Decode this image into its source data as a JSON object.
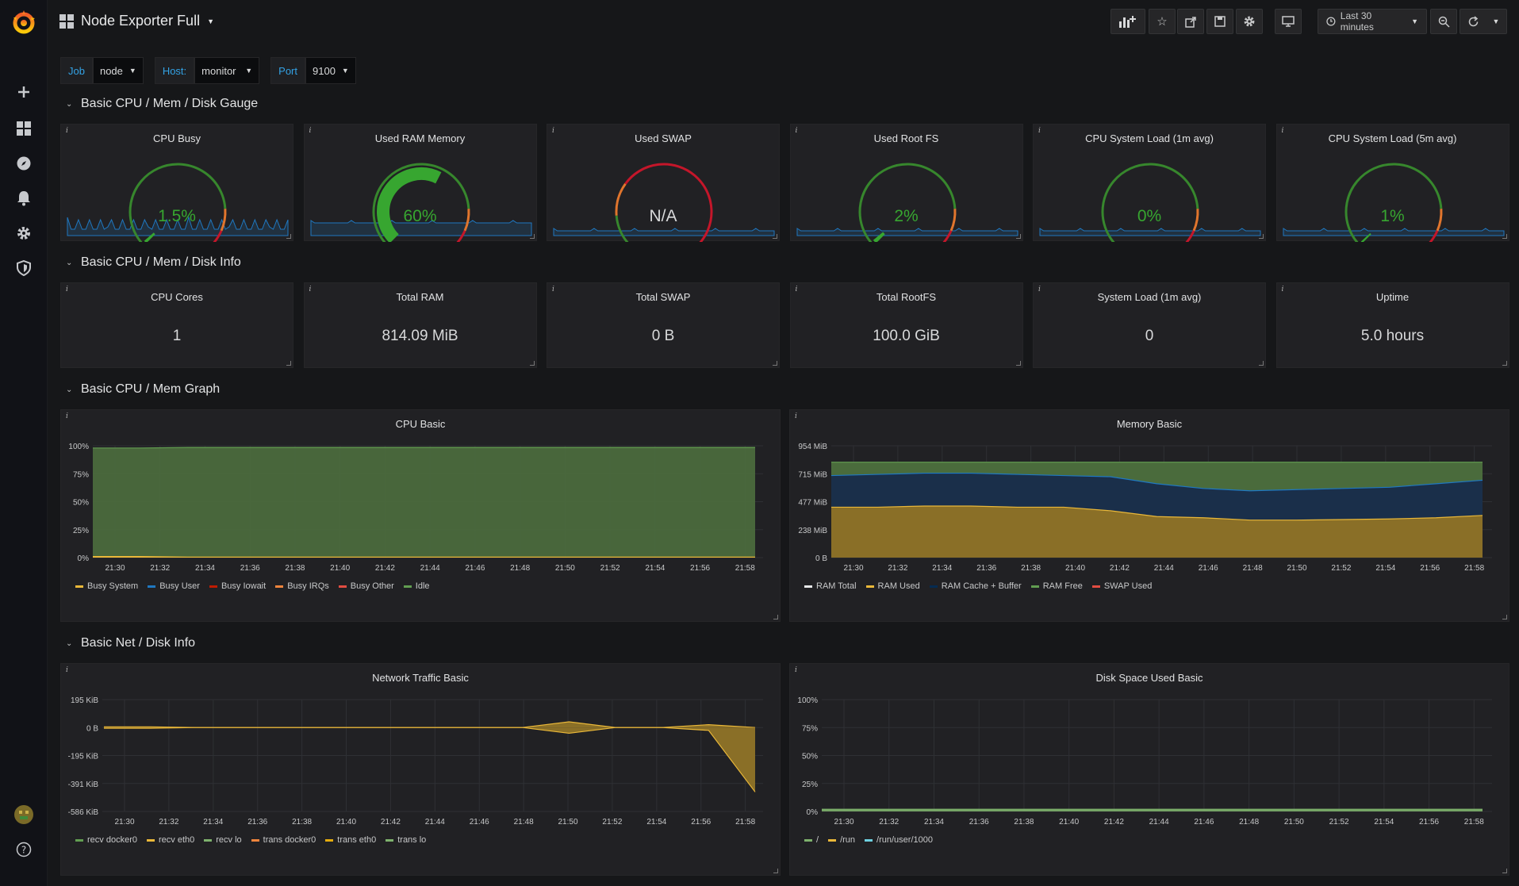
{
  "header": {
    "title": "Node Exporter Full",
    "time_range": "Last 30 minutes"
  },
  "variables": [
    {
      "label": "Job",
      "value": "node"
    },
    {
      "label": "Host:",
      "value": "monitor"
    },
    {
      "label": "Port",
      "value": "9100"
    }
  ],
  "rows": [
    {
      "title": "Basic CPU / Mem / Disk Gauge"
    },
    {
      "title": "Basic CPU / Mem / Disk Info"
    },
    {
      "title": "Basic CPU / Mem Graph"
    },
    {
      "title": "Basic Net / Disk Info"
    }
  ],
  "gauges": [
    {
      "title": "CPU Busy",
      "value": "1.5%",
      "fraction": 0.015,
      "color": "#37a630"
    },
    {
      "title": "Used RAM Memory",
      "value": "60%",
      "fraction": 0.6,
      "color": "#37a630"
    },
    {
      "title": "Used SWAP",
      "value": "N/A",
      "fraction": 0,
      "color": "#d8d9da"
    },
    {
      "title": "Used Root FS",
      "value": "2%",
      "fraction": 0.02,
      "color": "#37a630"
    },
    {
      "title": "CPU System Load (1m avg)",
      "value": "0%",
      "fraction": 0,
      "color": "#37a630"
    },
    {
      "title": "CPU System Load (5m avg)",
      "value": "1%",
      "fraction": 0.01,
      "color": "#37a630"
    }
  ],
  "stats": [
    {
      "title": "CPU Cores",
      "value": "1"
    },
    {
      "title": "Total RAM",
      "value": "814.09 MiB"
    },
    {
      "title": "Total SWAP",
      "value": "0 B"
    },
    {
      "title": "Total RootFS",
      "value": "100.0 GiB"
    },
    {
      "title": "System Load (1m avg)",
      "value": "0"
    },
    {
      "title": "Uptime",
      "value": "5.0 hours"
    }
  ],
  "graphs": {
    "cpu": {
      "title": "CPU Basic",
      "legend": [
        {
          "name": "Busy System",
          "color": "#eab839"
        },
        {
          "name": "Busy User",
          "color": "#1f78c1"
        },
        {
          "name": "Busy Iowait",
          "color": "#bf1b00"
        },
        {
          "name": "Busy IRQs",
          "color": "#ef843c"
        },
        {
          "name": "Busy Other",
          "color": "#e24d42"
        },
        {
          "name": "Idle",
          "color": "#629e51"
        }
      ]
    },
    "memory": {
      "title": "Memory Basic",
      "legend": [
        {
          "name": "RAM Total",
          "color": "#e8e9ea"
        },
        {
          "name": "RAM Used",
          "color": "#eab839"
        },
        {
          "name": "RAM Cache + Buffer",
          "color": "#052b51"
        },
        {
          "name": "RAM Free",
          "color": "#629e51"
        },
        {
          "name": "SWAP Used",
          "color": "#e24d42"
        }
      ]
    },
    "network": {
      "title": "Network Traffic Basic",
      "legend": [
        {
          "name": "recv docker0",
          "color": "#629e51"
        },
        {
          "name": "recv eth0",
          "color": "#eab839"
        },
        {
          "name": "recv lo",
          "color": "#7eb26d"
        },
        {
          "name": "trans docker0",
          "color": "#ef843c"
        },
        {
          "name": "trans eth0",
          "color": "#e5ac0e"
        },
        {
          "name": "trans lo",
          "color": "#7eb26d"
        }
      ]
    },
    "disk": {
      "title": "Disk Space Used Basic",
      "legend": [
        {
          "name": "/",
          "color": "#7eb26d"
        },
        {
          "name": "/run",
          "color": "#eab839"
        },
        {
          "name": "/run/user/1000",
          "color": "#6ed0e0"
        }
      ]
    }
  },
  "chart_data": [
    {
      "type": "area",
      "title": "CPU Basic",
      "x": [
        "21:30",
        "21:32",
        "21:34",
        "21:36",
        "21:38",
        "21:40",
        "21:42",
        "21:44",
        "21:46",
        "21:48",
        "21:50",
        "21:52",
        "21:54",
        "21:56",
        "21:58"
      ],
      "y_ticks": [
        "0%",
        "25%",
        "50%",
        "75%",
        "100%"
      ],
      "ylim": [
        0,
        100
      ],
      "series": [
        {
          "name": "Idle",
          "values": [
            98,
            98,
            98.5,
            98.5,
            98.5,
            98.5,
            98.5,
            98.5,
            98.5,
            98.5,
            98.5,
            98.5,
            98.5,
            98.5,
            98.5
          ]
        },
        {
          "name": "Busy System",
          "values": [
            1,
            1,
            0.5,
            0.5,
            0.5,
            0.5,
            0.5,
            0.5,
            0.5,
            0.5,
            0.5,
            0.5,
            0.5,
            0.5,
            0.5
          ]
        },
        {
          "name": "Busy User",
          "values": [
            1,
            1,
            1,
            1,
            1,
            1,
            1,
            1,
            1,
            1,
            1,
            1,
            1,
            1,
            1
          ]
        }
      ]
    },
    {
      "type": "area",
      "title": "Memory Basic",
      "x": [
        "21:30",
        "21:32",
        "21:34",
        "21:36",
        "21:38",
        "21:40",
        "21:42",
        "21:44",
        "21:46",
        "21:48",
        "21:50",
        "21:52",
        "21:54",
        "21:56",
        "21:58"
      ],
      "y_ticks": [
        "0 B",
        "238 MiB",
        "477 MiB",
        "715 MiB",
        "954 MiB"
      ],
      "ylim": [
        0,
        954
      ],
      "series": [
        {
          "name": "RAM Used",
          "values": [
            430,
            430,
            440,
            440,
            430,
            430,
            400,
            350,
            340,
            320,
            320,
            325,
            330,
            340,
            360
          ]
        },
        {
          "name": "RAM Cache + Buffer",
          "values": [
            700,
            710,
            720,
            720,
            710,
            700,
            690,
            630,
            590,
            570,
            580,
            590,
            600,
            630,
            660
          ]
        },
        {
          "name": "RAM Total",
          "values": [
            814,
            814,
            814,
            814,
            814,
            814,
            814,
            814,
            814,
            814,
            814,
            814,
            814,
            814,
            814
          ]
        }
      ]
    },
    {
      "type": "area",
      "title": "Network Traffic Basic",
      "x": [
        "21:30",
        "21:32",
        "21:34",
        "21:36",
        "21:38",
        "21:40",
        "21:42",
        "21:44",
        "21:46",
        "21:48",
        "21:50",
        "21:52",
        "21:54",
        "21:56",
        "21:58"
      ],
      "y_ticks": [
        "-586 KiB",
        "-391 KiB",
        "-195 KiB",
        "0 B",
        "195 KiB"
      ],
      "ylim": [
        -586,
        195
      ],
      "series": [
        {
          "name": "recv eth0",
          "values": [
            5,
            5,
            0,
            0,
            0,
            0,
            0,
            0,
            0,
            0,
            40,
            0,
            0,
            20,
            0
          ]
        },
        {
          "name": "trans eth0",
          "values": [
            -5,
            -5,
            0,
            0,
            0,
            0,
            0,
            0,
            0,
            0,
            -40,
            0,
            0,
            -20,
            -450
          ]
        }
      ]
    },
    {
      "type": "area",
      "title": "Disk Space Used Basic",
      "x": [
        "21:30",
        "21:32",
        "21:34",
        "21:36",
        "21:38",
        "21:40",
        "21:42",
        "21:44",
        "21:46",
        "21:48",
        "21:50",
        "21:52",
        "21:54",
        "21:56",
        "21:58"
      ],
      "y_ticks": [
        "0%",
        "25%",
        "50%",
        "75%",
        "100%"
      ],
      "ylim": [
        0,
        100
      ],
      "series": [
        {
          "name": "/",
          "values": [
            2,
            2,
            2,
            2,
            2,
            2,
            2,
            2,
            2,
            2,
            2,
            2,
            2,
            2,
            2
          ]
        },
        {
          "name": "/run",
          "values": [
            0,
            0,
            0,
            0,
            0,
            0,
            0,
            0,
            0,
            0,
            0,
            0,
            0,
            0,
            0
          ]
        },
        {
          "name": "/run/user/1000",
          "values": [
            0,
            0,
            0,
            0,
            0,
            0,
            0,
            0,
            0,
            0,
            0,
            0,
            0,
            0,
            0
          ]
        }
      ]
    }
  ]
}
